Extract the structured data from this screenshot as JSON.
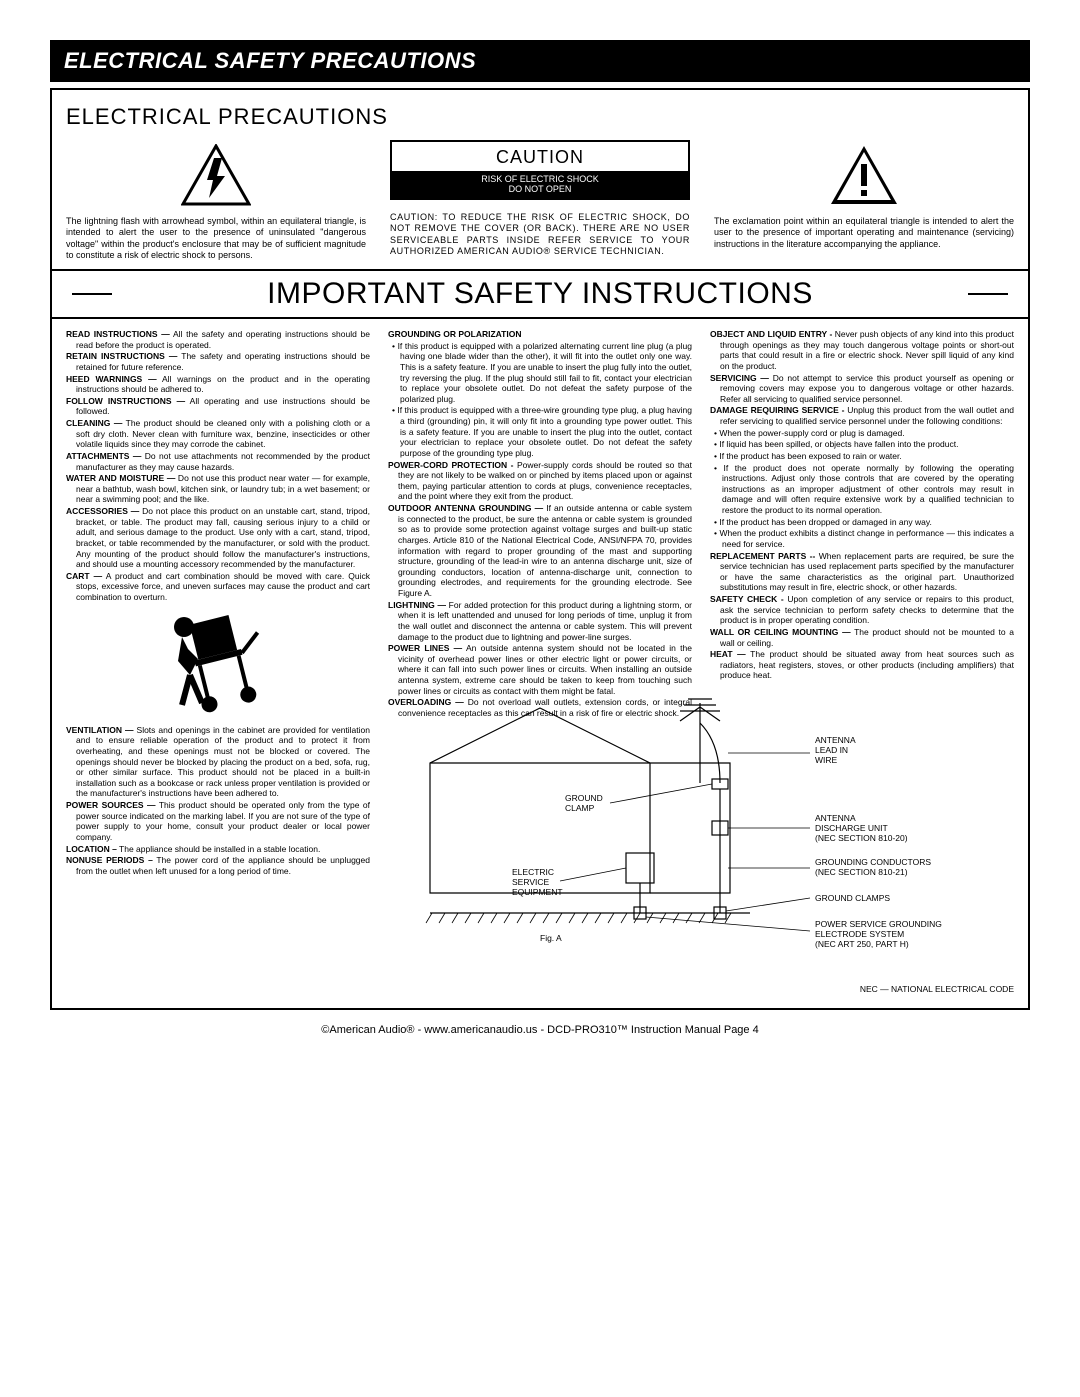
{
  "banner": "ELECTRICAL SAFETY PRECAUTIONS",
  "subtitle": "ELECTRICAL PRECAUTIONS",
  "caution": {
    "title": "CAUTION",
    "sub1": "RISK OF ELECTRIC SHOCK",
    "sub2": "DO NOT OPEN"
  },
  "top": {
    "left": "The lightning flash with arrowhead symbol, within an equilateral triangle, is intended to alert the user to the presence of uninsulated \"dangerous voltage\" within the product's enclosure that may be of sufficient magnitude to constitute a risk of electric shock to persons.",
    "mid": "CAUTION: TO REDUCE THE RISK OF ELECTRIC SHOCK, DO NOT REMOVE THE COVER (OR BACK). THERE ARE NO USER SERVICEABLE PARTS INSIDE REFER SERVICE TO YOUR AUTHORIZED AMERICAN AUDIO® SERVICE TECHNICIAN.",
    "right": "The exclamation point within an equilateral triangle is intended to alert the user to the presence of important operating and maintenance (servicing) instructions in the literature accompanying the appliance."
  },
  "bigTitle": "IMPORTANT SAFETY INSTRUCTIONS",
  "col1": [
    {
      "b": "READ INSTRUCTIONS —",
      "t": " All the safety and operating instructions should be read before the product is operated."
    },
    {
      "b": "RETAIN INSTRUCTIONS —",
      "t": " The safety and operating instructions should be retained for future reference."
    },
    {
      "b": "HEED WARNINGS —",
      "t": " All warnings on the product and in the operating instructions should be adhered to."
    },
    {
      "b": "FOLLOW INSTRUCTIONS —",
      "t": " All operating and use instructions should be followed."
    },
    {
      "b": "CLEANING —",
      "t": " The product should be cleaned only with a polishing cloth or a soft dry cloth. Never clean with furniture wax, benzine, insecticides or other volatile liquids since they may corrode the cabinet."
    },
    {
      "b": "ATTACHMENTS —",
      "t": " Do not use attachments not recommended by the product manufacturer as they may cause hazards."
    },
    {
      "b": "WATER AND MOISTURE —",
      "t": " Do not use this product near water — for example, near a bathtub, wash bowl, kitchen sink, or laundry tub; in a wet basement; or near a swimming pool; and the like."
    },
    {
      "b": "ACCESSORIES —",
      "t": " Do not place this product on an unstable cart, stand, tripod, bracket, or table. The product may fall, causing serious injury to a child or adult, and serious damage to the product. Use only with a cart, stand, tripod, bracket, or table recommended by the manufacturer, or sold with the product. Any mounting of the product should follow the manufacturer's instructions, and should use a mounting accessory recommended by the manufacturer."
    },
    {
      "b": "CART —",
      "t": " A product and cart combination should be moved with care. Quick stops, excessive force, and uneven surfaces may cause the product and cart combination to overturn."
    },
    {
      "b": "VENTILATION —",
      "t": " Slots and openings in the cabinet are provided for ventilation and to ensure reliable operation of the product and to protect it from overheating, and these openings must not be blocked or covered. The openings should never be blocked by placing the product on a bed, sofa, rug, or other similar surface. This product should not be placed in a built-in installation such as a bookcase or rack unless proper ventilation is provided or the manufacturer's instructions have been adhered to."
    },
    {
      "b": "POWER SOURCES —",
      "t": " This product should be operated only from the type of power source indicated on the marking label. If you are not sure of the type of power supply to your home, consult your product dealer or local power company."
    },
    {
      "b": "LOCATION –",
      "t": " The appliance should be installed in a stable location."
    },
    {
      "b": "NONUSE PERIODS –",
      "t": " The power cord of the appliance should be unplugged from the outlet when left unused for a long period of time."
    }
  ],
  "col2header": "GROUNDING OR POLARIZATION",
  "col2bullets1": [
    "If this product is equipped with a polarized alternating current line plug (a plug having one blade wider than the other), it will fit into the outlet only one way. This is a safety feature. If you are unable to insert the plug fully into the outlet, try reversing the plug. If the plug should still fail to fit, contact your electrician to replace your obsolete outlet. Do not defeat the safety purpose of the polarized plug.",
    "If this product is equipped with a three-wire grounding type plug, a plug having a third (grounding) pin, it will only fit into a grounding type power outlet. This is a safety feature. If you are unable to insert the plug into the outlet, contact your electrician to replace your obsolete outlet. Do not defeat the safety purpose of the grounding type plug."
  ],
  "col2items": [
    {
      "b": "POWER-CORD PROTECTION -",
      "t": " Power-supply cords should be routed so that they are not likely to be walked on or pinched by items placed upon or against them, paying particular attention to cords at plugs, convenience receptacles, and the point where they exit from the product."
    },
    {
      "b": "OUTDOOR ANTENNA GROUNDING —",
      "t": " If an outside antenna or cable system is connected to the product, be sure the antenna or cable system is grounded so as to provide some protection against voltage surges and built-up static charges. Article 810 of the National Electrical Code, ANSI/NFPA 70, provides information with regard to proper grounding of the mast and supporting structure, grounding of the lead-in wire to an antenna discharge unit, size of grounding conductors, location of antenna-discharge unit, connection to grounding electrodes, and requirements for the grounding electrode. See Figure A."
    },
    {
      "b": "LIGHTNING —",
      "t": " For added protection for this product during a lightning storm, or when it is left unattended and unused for long periods of time, unplug it from the wall outlet and disconnect the antenna or cable system. This will prevent damage to the product due to lightning and power-line surges."
    },
    {
      "b": "POWER LINES —",
      "t": " An outside antenna system should not be located in the vicinity of overhead power lines or other electric light or power circuits, or where it can fall into such power lines or circuits. When installing an outside antenna system, extreme care should be taken to keep from touching such power lines or circuits as contact with them might be fatal."
    },
    {
      "b": "OVERLOADING —",
      "t": " Do not overload wall outlets, extension cords, or integral convenience receptacles as this can result in a risk of fire or electric shock."
    }
  ],
  "col3items": [
    {
      "b": "OBJECT AND LIQUID ENTRY -",
      "t": " Never push objects of any kind into this product through openings as they may touch dangerous voltage points or short-out parts that could result in a fire or electric shock. Never spill liquid of any kind on the product."
    },
    {
      "b": "SERVICING —",
      "t": " Do not attempt to service this product yourself as opening or removing covers may expose you to dangerous voltage or other hazards. Refer all servicing to qualified service personnel."
    },
    {
      "b": "DAMAGE REQUIRING SERVICE -",
      "t": " Unplug this product from the wall outlet and refer servicing to qualified service personnel under the following conditions:"
    }
  ],
  "col3bullets": [
    "When the power-supply cord or plug is damaged.",
    "If liquid has been spilled, or objects have fallen into the product.",
    "If the product has been exposed to rain or water.",
    "If the product does not operate normally by following the operating instructions. Adjust only those controls that are covered by the operating instructions as an improper adjustment of other controls may result in damage and will often require extensive work by a qualified technician to restore the product to its normal operation.",
    "If the product has been dropped or damaged in any way.",
    "When the product exhibits a distinct change in performance — this indicates a need for service."
  ],
  "col3items2": [
    {
      "b": "REPLACEMENT PARTS --",
      "t": " When replacement parts are required, be sure the service technician has used replacement parts specified by the manufacturer or have the same characteristics as the original part. Unauthorized substitutions may result in fire, electric shock, or other hazards."
    },
    {
      "b": "SAFETY CHECK -",
      "t": " Upon completion of any service or repairs to this product, ask the service technician to perform safety checks to determine that the product is in proper operating condition."
    },
    {
      "b": "WALL OR CEILING MOUNTING —",
      "t": " The product should not be mounted to a wall or ceiling."
    },
    {
      "b": "HEAT —",
      "t": " The product should be situated away from heat sources such as radiators, heat registers, stoves, or other products (including amplifiers) that produce heat."
    }
  ],
  "figLabels": {
    "antennaLead": "ANTENNA\nLEAD IN\nWIRE",
    "groundClamp": "GROUND\nCLAMP",
    "dischargeUnit": "ANTENNA\nDISCHARGE UNIT\n(NEC SECTION 810-20)",
    "electricService": "ELECTRIC\nSERVICE\nEQUIPMENT",
    "groundingConductors": "GROUNDING CONDUCTORS\n(NEC SECTION 810-21)",
    "groundClamps": "GROUND CLAMPS",
    "powerService": "POWER SERVICE GROUNDING\nELECTRODE SYSTEM\n(NEC ART 250, PART H)",
    "figA": "Fig. A"
  },
  "necLine": "NEC — NATIONAL ELECTRICAL CODE",
  "footer": "©American Audio®   -   www.americanaudio.us   -   DCD-PRO310™ Instruction Manual Page 4"
}
